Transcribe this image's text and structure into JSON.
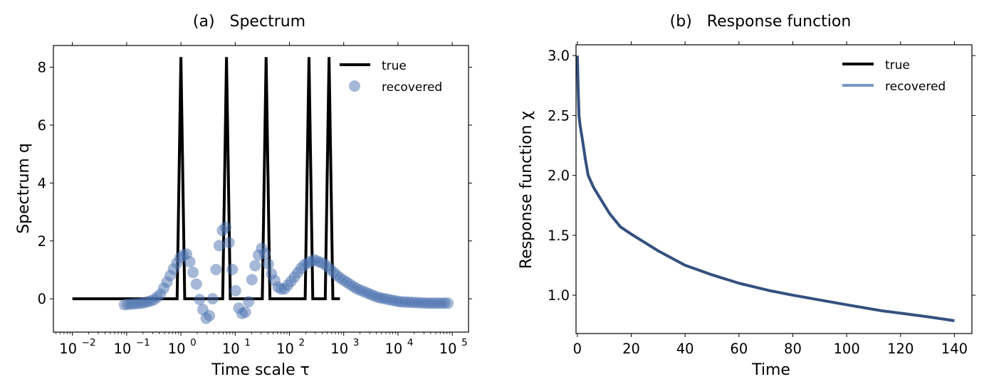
{
  "chart_data": [
    {
      "type": "line+scatter",
      "title": "(a)   Spectrum",
      "xlabel": "Time scale τ",
      "ylabel": "Spectrum q",
      "xscale": "log",
      "xlim_log10": [
        -2.35,
        5.3
      ],
      "ylim": [
        -1.15,
        8.75
      ],
      "xticks": [
        {
          "base": "10",
          "exp": "−2",
          "log10": -2
        },
        {
          "base": "10",
          "exp": "−1",
          "log10": -1
        },
        {
          "base": "10",
          "exp": "0",
          "log10": 0
        },
        {
          "base": "10",
          "exp": "1",
          "log10": 1
        },
        {
          "base": "10",
          "exp": "2",
          "log10": 2
        },
        {
          "base": "10",
          "exp": "3",
          "log10": 3
        },
        {
          "base": "10",
          "exp": "4",
          "log10": 4
        },
        {
          "base": "10",
          "exp": "5",
          "log10": 5
        }
      ],
      "yticks": [
        0,
        2,
        4,
        6,
        8
      ],
      "ytick_labels": [
        "0",
        "2",
        "4",
        "6",
        "8"
      ],
      "legend": {
        "placement": "top-right",
        "entries": [
          {
            "label": "true",
            "kind": "line",
            "color": "#000000"
          },
          {
            "label": "recovered",
            "kind": "marker",
            "color": "#4c72b0"
          }
        ]
      },
      "series": [
        {
          "name": "true",
          "kind": "line",
          "color": "#000000",
          "baseline": 0,
          "range_log10": [
            -2,
            2.93
          ],
          "peak_height": 8.35,
          "peak_log10": [
            0.0,
            0.84,
            1.57,
            2.36,
            2.73
          ],
          "peak_half_width_log10": 0.07
        },
        {
          "name": "recovered",
          "kind": "scatter",
          "color": "#4c72b0",
          "alpha": 0.5,
          "n_points": 100,
          "range_log10": [
            -1.04,
            4.92
          ],
          "knots_log10_tau": [
            -1.04,
            -0.71,
            -0.51,
            -0.38,
            -0.25,
            -0.12,
            0.01,
            0.11,
            0.18,
            0.28,
            0.34,
            0.41,
            0.47,
            0.54,
            0.61,
            0.67,
            0.76,
            0.84,
            0.89,
            0.97,
            1.07,
            1.16,
            1.24,
            1.3,
            1.4,
            1.49,
            1.55,
            1.66,
            1.79,
            1.89,
            2.05,
            2.25,
            2.45,
            2.65,
            2.91,
            3.24,
            3.63,
            4.03,
            4.55,
            4.92
          ],
          "knots_q": [
            -0.2,
            -0.15,
            -0.05,
            0.15,
            0.6,
            1.1,
            1.5,
            1.55,
            1.2,
            0.55,
            0.0,
            -0.4,
            -0.7,
            -0.55,
            0.3,
            1.5,
            2.35,
            2.5,
            1.9,
            0.65,
            -0.35,
            -0.6,
            -0.2,
            0.6,
            1.4,
            1.75,
            1.55,
            0.9,
            0.4,
            0.3,
            0.65,
            1.15,
            1.35,
            1.2,
            0.75,
            0.35,
            0.05,
            -0.1,
            -0.15,
            -0.15
          ]
        }
      ]
    },
    {
      "type": "line",
      "title": "(b)   Response function",
      "xlabel": "Time",
      "ylabel": "Response function χ",
      "xlim": [
        -0.5,
        146.5
      ],
      "ylim": [
        0.68,
        3.09
      ],
      "xticks": [
        0,
        20,
        40,
        60,
        80,
        100,
        120,
        140
      ],
      "xtick_labels": [
        "0",
        "20",
        "40",
        "60",
        "80",
        "100",
        "120",
        "140"
      ],
      "yticks": [
        1.0,
        1.5,
        2.0,
        2.5,
        3.0
      ],
      "ytick_labels": [
        "1.0",
        "1.5",
        "2.0",
        "2.5",
        "3.0"
      ],
      "legend": {
        "placement": "top-right",
        "entries": [
          {
            "label": "true",
            "kind": "line",
            "color": "#000000"
          },
          {
            "label": "recovered",
            "kind": "line",
            "color": "#7a97c0"
          }
        ]
      },
      "series": [
        {
          "name": "true / recovered (overlapping)",
          "color": "#34507f",
          "x": [
            0,
            0.3,
            0.6,
            1,
            2,
            3,
            4,
            6,
            8.7,
            12,
            16,
            20,
            25,
            30,
            40,
            50,
            60,
            71,
            80,
            90,
            100,
            113,
            120,
            130,
            140
          ],
          "y": [
            3.0,
            2.72,
            2.5,
            2.42,
            2.28,
            2.13,
            2.0,
            1.9,
            1.8,
            1.68,
            1.57,
            1.51,
            1.44,
            1.37,
            1.25,
            1.17,
            1.1,
            1.04,
            1.0,
            0.96,
            0.92,
            0.87,
            0.85,
            0.82,
            0.787
          ]
        }
      ]
    }
  ]
}
